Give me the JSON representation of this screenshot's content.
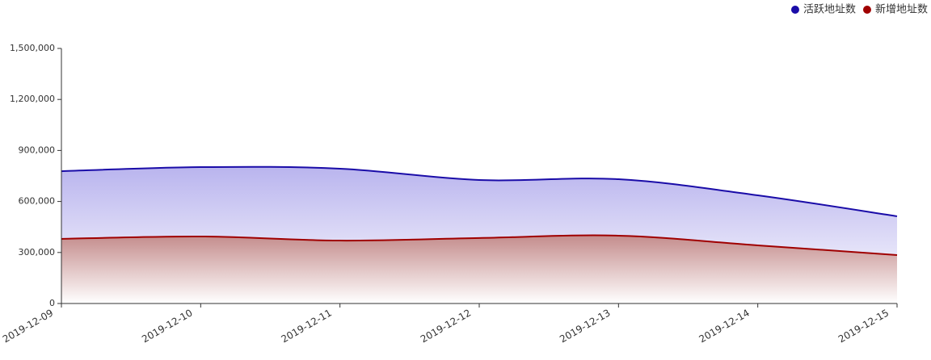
{
  "chart_data": {
    "type": "area",
    "x": [
      "2019-12-09",
      "2019-12-10",
      "2019-12-11",
      "2019-12-12",
      "2019-12-13",
      "2019-12-14",
      "2019-12-15"
    ],
    "series": [
      {
        "name": "活跃地址数",
        "color": "#1a0ca8",
        "values": [
          778000,
          802000,
          793000,
          726000,
          731000,
          636000,
          513000
        ]
      },
      {
        "name": "新增地址数",
        "color": "#a00000",
        "values": [
          380000,
          394000,
          370000,
          385000,
          399000,
          342000,
          285000
        ]
      }
    ],
    "ylim": [
      0,
      1500000
    ],
    "yticks": [
      0,
      {
        "value": 300000,
        "label": "300,000"
      },
      {
        "value": 600000,
        "label": "600,000"
      },
      {
        "value": 900000,
        "label": "900,000"
      },
      {
        "value": 1200000,
        "label": "1,200,000"
      },
      {
        "value": 1500000,
        "label": "1,500,000"
      }
    ],
    "legend": "top-right",
    "smooth": true
  }
}
